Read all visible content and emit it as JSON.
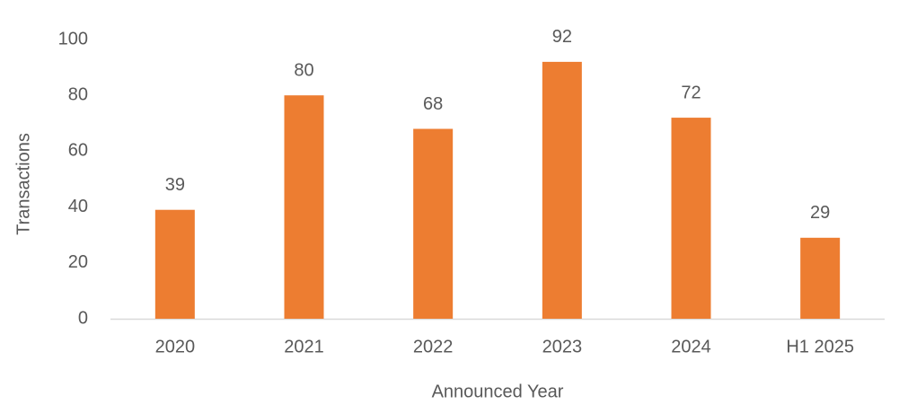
{
  "chart_data": {
    "type": "bar",
    "x_label": "Announced Year",
    "y_label": "Transactions",
    "categories": [
      "2020",
      "2021",
      "2022",
      "2023",
      "2024",
      "H1 2025"
    ],
    "values": [
      39,
      80,
      68,
      92,
      72,
      29
    ],
    "color": "#ed7d31",
    "ylim": [
      0,
      100
    ],
    "yticks": [
      0,
      20,
      40,
      60,
      80,
      100
    ],
    "grid": false,
    "data_labels": true
  }
}
